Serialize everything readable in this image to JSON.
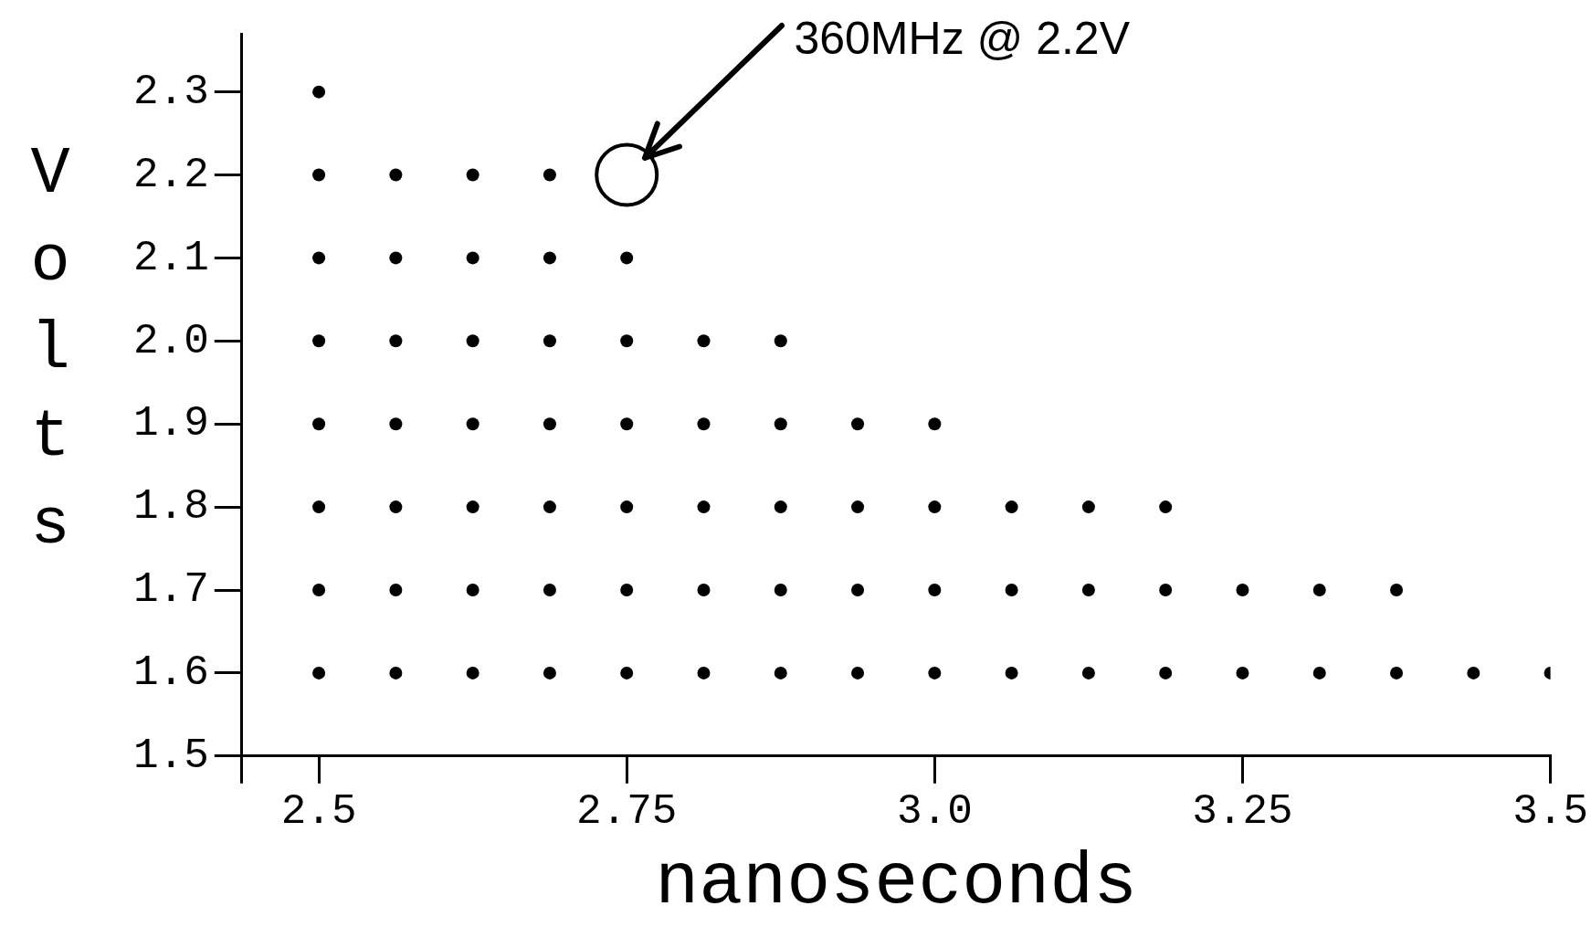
{
  "chart_data": {
    "type": "scatter",
    "xlabel": "nanoseconds",
    "ylabel": "Volts",
    "annotations": [
      {
        "text": "360MHz @ 2.2V",
        "x": 2.765,
        "y": 2.22
      }
    ],
    "xlim": [
      2.4375,
      3.5
    ],
    "ylim": [
      1.5,
      2.37
    ],
    "xticks": [
      {
        "value": 2.4375,
        "label": null
      },
      2.5,
      2.75,
      {
        "value": 3,
        "label": "3.0"
      },
      3.25,
      3.5
    ],
    "yticks": [
      1.5,
      1.6,
      1.7,
      1.8,
      1.9,
      {
        "value": 2,
        "label": "2.0"
      },
      2.1,
      2.2,
      2.3
    ],
    "grid": false,
    "legend": false,
    "marker": "circle",
    "series": [
      {
        "color": "#000000",
        "x": [
          2.5
        ],
        "values": [
          2.3
        ]
      },
      {
        "color": "#000000",
        "x": [
          2.5,
          2.5625,
          2.625,
          2.6875
        ],
        "values": [
          2.2,
          2.2,
          2.2,
          2.2
        ]
      },
      {
        "color": "#000000",
        "x": [
          2.5,
          2.5625,
          2.625,
          2.6875,
          2.75
        ],
        "values": [
          2.1,
          2.1,
          2.1,
          2.1,
          2.1
        ]
      },
      {
        "color": "#000000",
        "x": [
          2.5,
          2.5625,
          2.625,
          2.6875,
          2.75,
          2.8125,
          2.875
        ],
        "values": [
          2.0,
          2.0,
          2.0,
          2.0,
          2.0,
          2.0,
          2.0
        ]
      },
      {
        "color": "#000000",
        "x": [
          2.5,
          2.5625,
          2.625,
          2.6875,
          2.75,
          2.8125,
          2.875,
          2.9375,
          3.0
        ],
        "values": [
          1.9,
          1.9,
          1.9,
          1.9,
          1.9,
          1.9,
          1.9,
          1.9,
          1.9
        ]
      },
      {
        "color": "#000000",
        "x": [
          2.5,
          2.5625,
          2.625,
          2.6875,
          2.75,
          2.8125,
          2.875,
          2.9375,
          3.0,
          3.0625,
          3.125,
          3.1875
        ],
        "values": [
          1.8,
          1.8,
          1.8,
          1.8,
          1.8,
          1.8,
          1.8,
          1.8,
          1.8,
          1.8,
          1.8,
          1.8
        ]
      },
      {
        "color": "#000000",
        "x": [
          2.5,
          2.5625,
          2.625,
          2.6875,
          2.75,
          2.8125,
          2.875,
          2.9375,
          3.0,
          3.0625,
          3.125,
          3.1875,
          3.25,
          3.3125,
          3.375
        ],
        "values": [
          1.7,
          1.7,
          1.7,
          1.7,
          1.7,
          1.7,
          1.7,
          1.7,
          1.7,
          1.7,
          1.7,
          1.7,
          1.7,
          1.7,
          1.7
        ]
      },
      {
        "color": "#000000",
        "x": [
          2.5,
          2.5625,
          2.625,
          2.6875,
          2.75,
          2.8125,
          2.875,
          2.9375,
          3.0,
          3.0625,
          3.125,
          3.1875,
          3.25,
          3.3125,
          3.375,
          3.4375,
          3.5
        ],
        "values": [
          1.6,
          1.6,
          1.6,
          1.6,
          1.6,
          1.6,
          1.6,
          1.6,
          1.6,
          1.6,
          1.6,
          1.6,
          1.6,
          1.6,
          1.6,
          1.6,
          1.6
        ]
      },
      {
        "color": "#000000",
        "x": [
          2.75
        ],
        "values": [
          2.2
        ],
        "marker": "circle"
      }
    ]
  }
}
